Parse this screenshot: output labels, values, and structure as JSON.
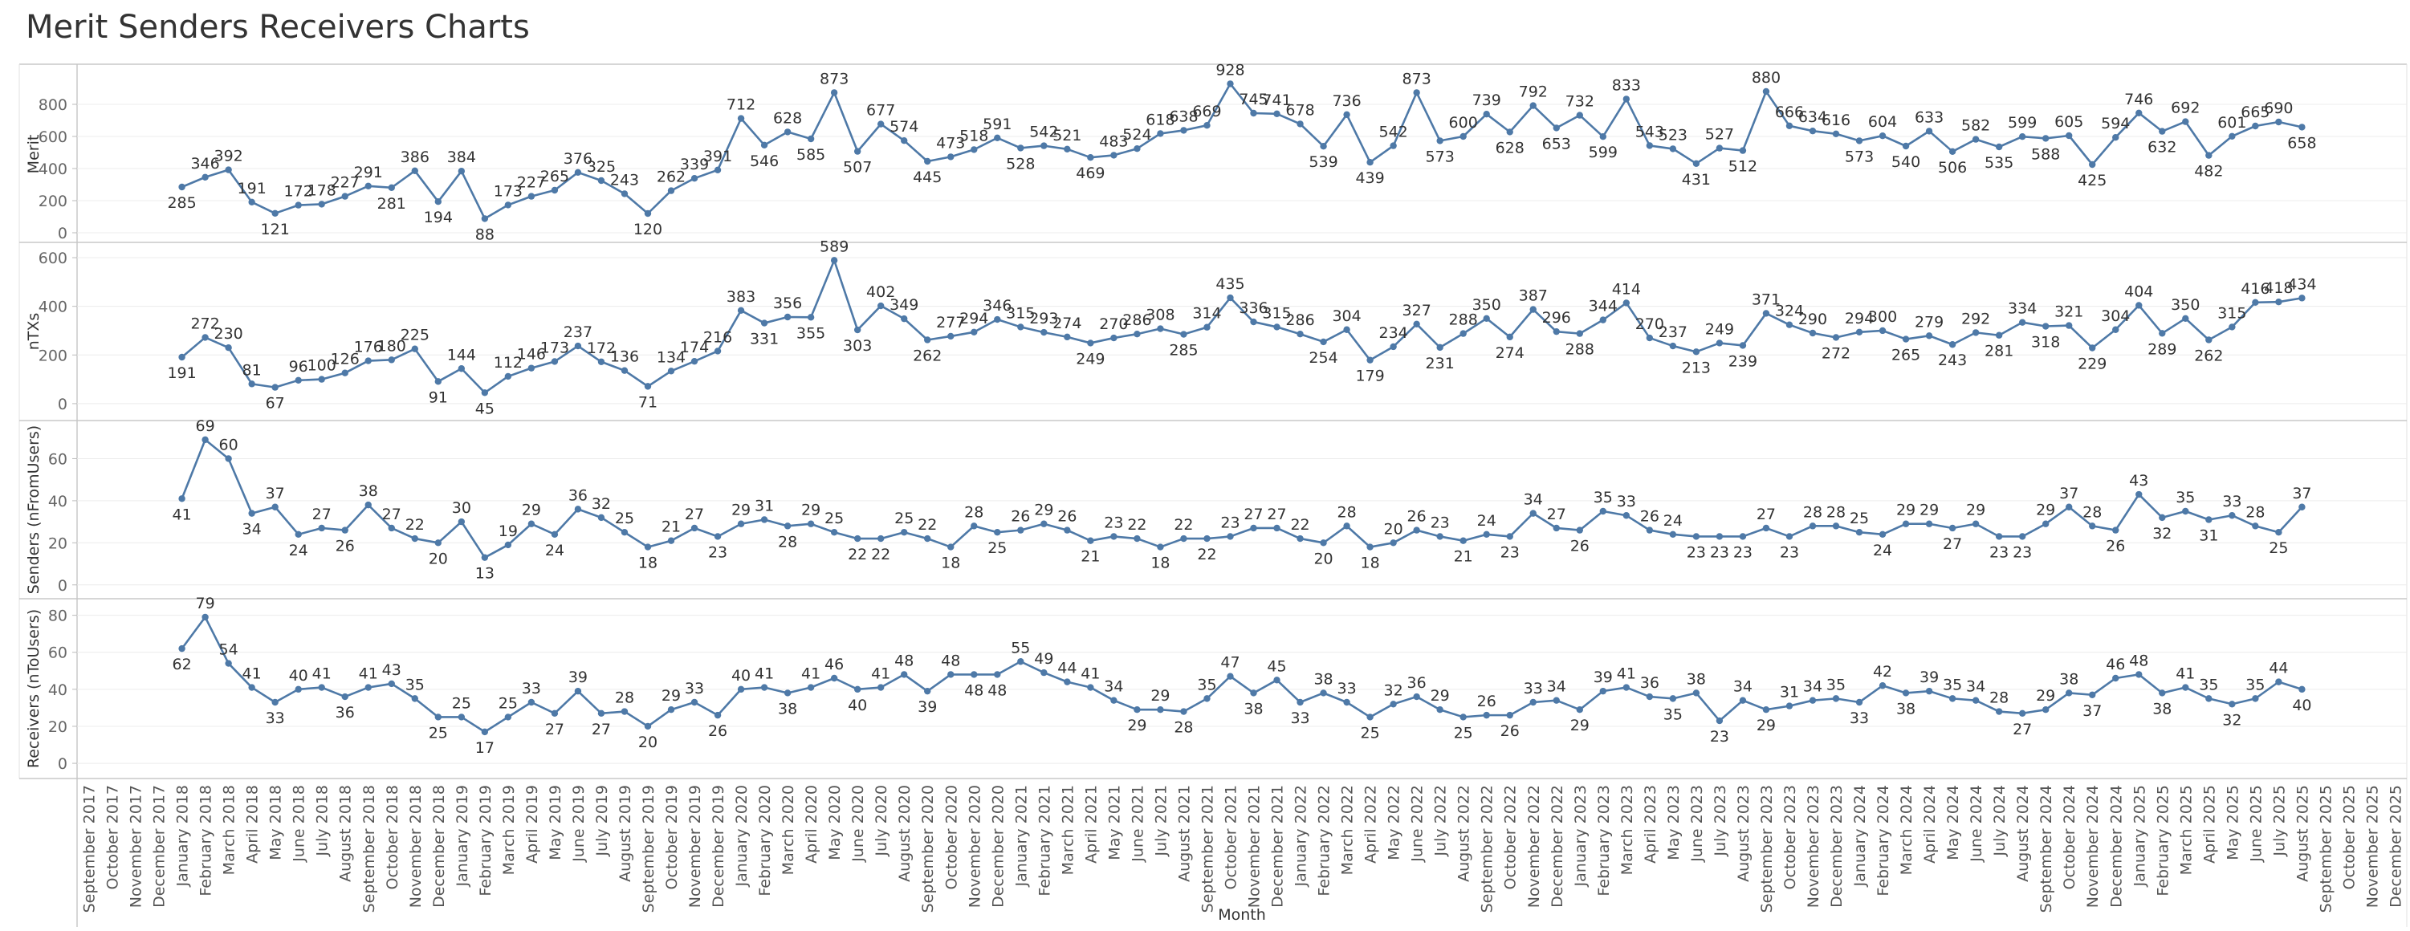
{
  "title": "Merit Senders Receivers Charts",
  "chart_data": {
    "type": "line",
    "months": [
      "September 2017",
      "October 2017",
      "November 2017",
      "December 2017",
      "January 2018",
      "February 2018",
      "March 2018",
      "April 2018",
      "May 2018",
      "June 2018",
      "July 2018",
      "August 2018",
      "September 2018",
      "October 2018",
      "November 2018",
      "December 2018",
      "January 2019",
      "February 2019",
      "March 2019",
      "April 2019",
      "May 2019",
      "June 2019",
      "July 2019",
      "August 2019",
      "September 2019",
      "October 2019",
      "November 2019",
      "December 2019",
      "January 2020",
      "February 2020",
      "March 2020",
      "April 2020",
      "May 2020",
      "June 2020",
      "July 2020",
      "August 2020",
      "September 2020",
      "October 2020",
      "November 2020",
      "December 2020",
      "January 2021",
      "February 2021",
      "March 2021",
      "April 2021",
      "May 2021",
      "June 2021",
      "July 2021",
      "August 2021",
      "September 2021",
      "October 2021",
      "November 2021",
      "December 2021",
      "January 2022",
      "February 2022",
      "March 2022",
      "April 2022",
      "May 2022",
      "June 2022",
      "July 2022",
      "August 2022",
      "September 2022",
      "October 2022",
      "November 2022",
      "December 2022",
      "January 2023",
      "February 2023",
      "March 2023",
      "April 2023",
      "May 2023",
      "June 2023",
      "July 2023",
      "August 2023",
      "September 2023",
      "October 2023",
      "November 2023",
      "December 2023",
      "January 2024",
      "February 2024",
      "March 2024",
      "April 2024",
      "May 2024",
      "June 2024",
      "July 2024",
      "August 2024",
      "September 2024",
      "October 2024",
      "November 2024",
      "December 2024",
      "January 2025",
      "February 2025",
      "March 2025",
      "April 2025",
      "May 2025",
      "June 2025",
      "July 2025",
      "August 2025",
      "September 2025",
      "October 2025",
      "November 2025",
      "December 2025"
    ],
    "xlabel": "Month",
    "line_color": "#4e79a7",
    "grid": true,
    "panels": [
      {
        "ylabel": "Merit",
        "ylim": [
          0,
          960
        ],
        "ticks": [
          0,
          200,
          400,
          600,
          800
        ],
        "values": [
          null,
          null,
          null,
          null,
          285,
          346,
          392,
          191,
          121,
          172,
          178,
          227,
          291,
          281,
          386,
          194,
          384,
          88,
          173,
          227,
          265,
          376,
          325,
          243,
          120,
          262,
          339,
          391,
          712,
          546,
          628,
          585,
          873,
          507,
          677,
          574,
          445,
          473,
          518,
          591,
          528,
          542,
          521,
          469,
          483,
          524,
          618,
          638,
          669,
          928,
          745,
          741,
          678,
          539,
          736,
          439,
          542,
          873,
          573,
          600,
          739,
          628,
          792,
          653,
          732,
          599,
          833,
          543,
          523,
          431,
          527,
          512,
          880,
          666,
          634,
          616,
          573,
          604,
          540,
          633,
          506,
          582,
          535,
          599,
          588,
          605,
          425,
          594,
          746,
          632,
          692,
          482,
          601,
          665,
          690,
          658,
          null,
          null,
          null,
          null
        ]
      },
      {
        "ylabel": "nTXs",
        "ylim": [
          -30,
          610
        ],
        "ticks": [
          0,
          200,
          400,
          600
        ],
        "values": [
          null,
          null,
          null,
          null,
          191,
          272,
          230,
          81,
          67,
          96,
          100,
          126,
          176,
          180,
          225,
          91,
          144,
          45,
          112,
          146,
          173,
          237,
          172,
          136,
          71,
          134,
          174,
          216,
          383,
          331,
          356,
          355,
          589,
          303,
          402,
          349,
          262,
          277,
          294,
          346,
          315,
          293,
          274,
          249,
          270,
          286,
          308,
          285,
          314,
          435,
          336,
          315,
          286,
          254,
          304,
          179,
          234,
          327,
          231,
          288,
          350,
          274,
          387,
          296,
          288,
          344,
          414,
          270,
          237,
          213,
          249,
          239,
          371,
          324,
          290,
          272,
          294,
          300,
          265,
          279,
          243,
          292,
          281,
          334,
          318,
          321,
          229,
          304,
          404,
          289,
          350,
          262,
          315,
          416,
          418,
          434,
          null,
          null,
          null,
          null
        ]
      },
      {
        "ylabel": "Senders (nFromUsers)",
        "ylim": [
          -2,
          72
        ],
        "ticks": [
          0,
          20,
          40,
          60
        ],
        "values": [
          null,
          null,
          null,
          null,
          41,
          69,
          60,
          34,
          37,
          24,
          27,
          26,
          38,
          27,
          22,
          20,
          30,
          13,
          19,
          29,
          24,
          36,
          32,
          25,
          18,
          21,
          27,
          23,
          29,
          31,
          28,
          29,
          25,
          22,
          22,
          25,
          22,
          18,
          28,
          25,
          26,
          29,
          26,
          21,
          23,
          22,
          18,
          22,
          22,
          23,
          27,
          27,
          22,
          20,
          28,
          18,
          20,
          26,
          23,
          21,
          24,
          23,
          34,
          27,
          26,
          35,
          33,
          26,
          24,
          23,
          23,
          23,
          27,
          23,
          28,
          28,
          25,
          24,
          29,
          29,
          27,
          29,
          23,
          23,
          29,
          37,
          28,
          26,
          43,
          32,
          35,
          31,
          33,
          28,
          25,
          37,
          null,
          null,
          null,
          null
        ]
      },
      {
        "ylabel": "Receivers (nToUsers)",
        "ylim": [
          -3,
          82
        ],
        "ticks": [
          0,
          20,
          40,
          60,
          80
        ],
        "values": [
          null,
          null,
          null,
          null,
          62,
          79,
          54,
          41,
          33,
          40,
          41,
          36,
          41,
          43,
          35,
          25,
          25,
          17,
          25,
          33,
          27,
          39,
          27,
          28,
          20,
          29,
          33,
          26,
          40,
          41,
          38,
          41,
          46,
          40,
          41,
          48,
          39,
          48,
          48,
          48,
          55,
          49,
          44,
          41,
          34,
          29,
          29,
          28,
          35,
          47,
          38,
          45,
          33,
          38,
          33,
          25,
          32,
          36,
          29,
          25,
          26,
          26,
          33,
          34,
          29,
          39,
          41,
          36,
          35,
          38,
          23,
          34,
          29,
          31,
          34,
          35,
          33,
          42,
          38,
          39,
          35,
          34,
          28,
          27,
          29,
          38,
          37,
          46,
          48,
          38,
          41,
          35,
          32,
          35,
          44,
          40,
          null,
          null,
          null,
          null
        ]
      }
    ]
  }
}
